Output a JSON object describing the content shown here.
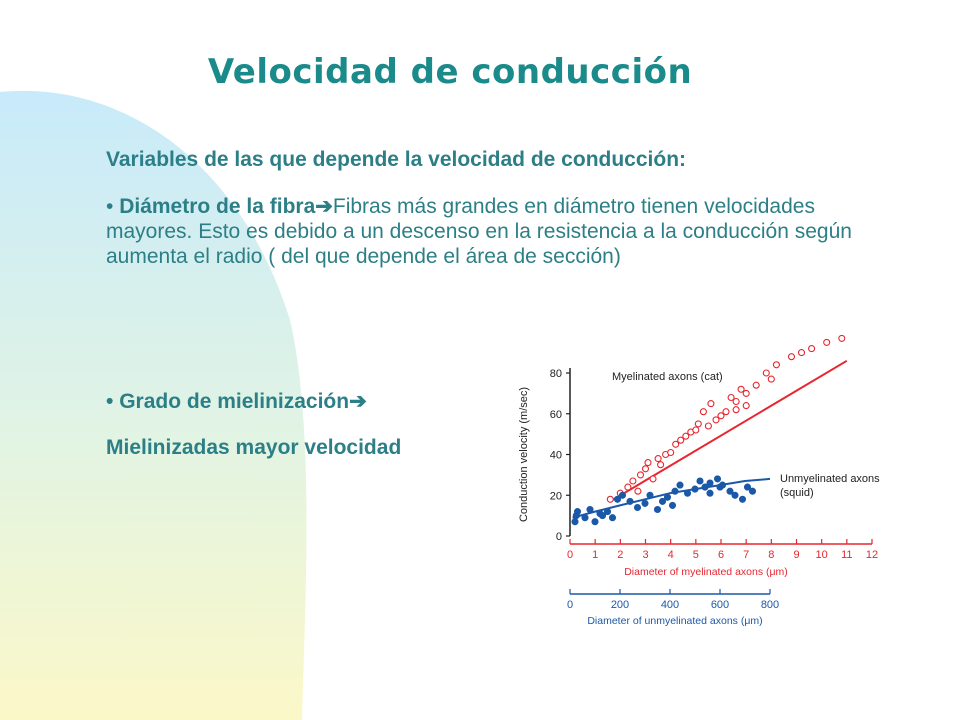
{
  "slide": {
    "title": "Velocidad de conducción",
    "heading": "Variables de las que depende la velocidad de conducción:",
    "bullet1_bold": "Diámetro de la fibra",
    "bullet1_rest": "Fibras más grandes en diámetro tienen velocidades mayores. Esto es debido a un descenso en la resistencia a la conducción según aumenta el radio ( del que depende el área de sección)",
    "bullet2_bold": "Grado de mielinización",
    "line3": "Mielinizadas mayor velocidad",
    "bullet_char": "•",
    "arrow_char": "➔"
  },
  "colors": {
    "text": "#2c7f86",
    "title": "#1a8a8a",
    "myelinated": "#e8262f",
    "unmyelinated": "#1b58a8",
    "axis": "#222222"
  },
  "chart_data": {
    "type": "scatter",
    "ylabel": "Conduction velocity (m/sec)",
    "ylim": [
      0,
      80
    ],
    "yticks": [
      0,
      20,
      40,
      60,
      80
    ],
    "x_axis_myelinated": {
      "label": "Diameter of myelinated axons (μm)",
      "ticks": [
        0,
        1,
        2,
        3,
        4,
        5,
        6,
        7,
        8,
        9,
        10,
        11,
        12
      ]
    },
    "x_axis_unmyelinated": {
      "label": "Diameter of unmyelinated axons (μm)",
      "ticks": [
        0,
        200,
        400,
        600,
        800
      ]
    },
    "series": [
      {
        "name": "Myelinated axons (cat)",
        "axis": "myelinated",
        "trend": [
          [
            1.6,
            17
          ],
          [
            11,
            86
          ]
        ],
        "points": [
          [
            1.6,
            18
          ],
          [
            2.0,
            21
          ],
          [
            2.3,
            24
          ],
          [
            2.5,
            27
          ],
          [
            2.7,
            22
          ],
          [
            2.8,
            30
          ],
          [
            3.0,
            33
          ],
          [
            3.1,
            36
          ],
          [
            3.3,
            28
          ],
          [
            3.5,
            38
          ],
          [
            3.6,
            35
          ],
          [
            3.8,
            40
          ],
          [
            4.0,
            41
          ],
          [
            4.2,
            45
          ],
          [
            4.4,
            47
          ],
          [
            4.6,
            49
          ],
          [
            4.8,
            51
          ],
          [
            5.0,
            52
          ],
          [
            5.1,
            55
          ],
          [
            5.3,
            61
          ],
          [
            5.5,
            54
          ],
          [
            5.6,
            65
          ],
          [
            5.8,
            57
          ],
          [
            6.0,
            59
          ],
          [
            6.2,
            61
          ],
          [
            6.4,
            68
          ],
          [
            6.6,
            62
          ],
          [
            6.8,
            72
          ],
          [
            7.0,
            70
          ],
          [
            7.4,
            74
          ],
          [
            7.8,
            80
          ],
          [
            8.2,
            84
          ],
          [
            8.8,
            88
          ],
          [
            9.2,
            90
          ],
          [
            9.6,
            92
          ],
          [
            10.2,
            95
          ],
          [
            10.8,
            97
          ],
          [
            6.6,
            66
          ],
          [
            7.0,
            64
          ],
          [
            8.0,
            77
          ]
        ]
      },
      {
        "name": "Unmyelinated axons (squid)",
        "axis": "unmyelinated",
        "trend": [
          [
            10,
            9
          ],
          [
            100,
            12
          ],
          [
            200,
            15
          ],
          [
            300,
            18
          ],
          [
            400,
            21
          ],
          [
            500,
            23
          ],
          [
            600,
            25
          ],
          [
            700,
            27
          ],
          [
            800,
            28
          ]
        ],
        "points": [
          [
            20,
            7
          ],
          [
            25,
            10
          ],
          [
            30,
            12
          ],
          [
            60,
            9
          ],
          [
            80,
            13
          ],
          [
            100,
            7
          ],
          [
            120,
            11
          ],
          [
            130,
            10
          ],
          [
            150,
            12
          ],
          [
            170,
            9
          ],
          [
            190,
            18
          ],
          [
            210,
            20
          ],
          [
            240,
            17
          ],
          [
            270,
            14
          ],
          [
            300,
            16
          ],
          [
            320,
            20
          ],
          [
            350,
            13
          ],
          [
            370,
            17
          ],
          [
            390,
            19
          ],
          [
            420,
            22
          ],
          [
            440,
            25
          ],
          [
            470,
            21
          ],
          [
            500,
            23
          ],
          [
            520,
            27
          ],
          [
            540,
            24
          ],
          [
            560,
            26
          ],
          [
            590,
            28
          ],
          [
            610,
            25
          ],
          [
            640,
            22
          ],
          [
            660,
            20
          ],
          [
            690,
            18
          ],
          [
            710,
            24
          ],
          [
            730,
            22
          ],
          [
            410,
            15
          ],
          [
            600,
            24
          ],
          [
            560,
            21
          ]
        ]
      }
    ]
  }
}
